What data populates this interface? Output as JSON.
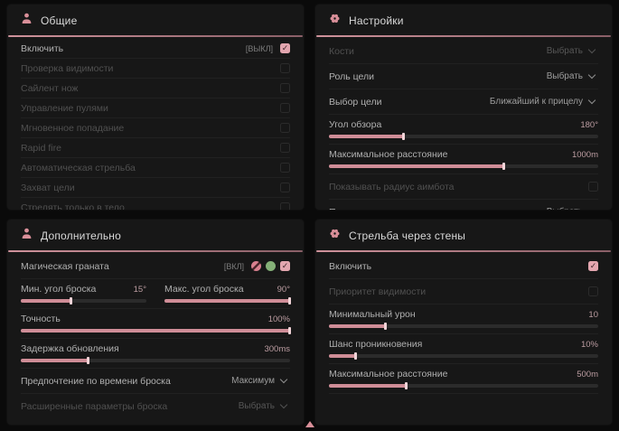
{
  "accent": "#d98f99",
  "footer_marker": "pointer-triangle",
  "panels": [
    {
      "id": "general",
      "title": "Общие",
      "icon": "person",
      "compact": true,
      "rows": [
        {
          "type": "toggle",
          "label": "Включить",
          "badge": "[ВЫКЛ]",
          "checked": true,
          "enabled": true
        },
        {
          "type": "toggle",
          "label": "Проверка видимости",
          "checked": false,
          "enabled": false
        },
        {
          "type": "toggle",
          "label": "Сайлент нож",
          "checked": false,
          "enabled": false
        },
        {
          "type": "toggle",
          "label": "Управление пулями",
          "checked": false,
          "enabled": false
        },
        {
          "type": "toggle",
          "label": "Мгновенное попадание",
          "checked": false,
          "enabled": false
        },
        {
          "type": "toggle",
          "label": "Rapid fire",
          "checked": false,
          "enabled": false
        },
        {
          "type": "toggle",
          "label": "Автоматическая стрельба",
          "checked": false,
          "enabled": false
        },
        {
          "type": "toggle",
          "label": "Захват цели",
          "checked": false,
          "enabled": false
        },
        {
          "type": "toggle",
          "label": "Стрелять только в тело",
          "checked": false,
          "enabled": false
        }
      ]
    },
    {
      "id": "settings",
      "title": "Настройки",
      "icon": "gear",
      "compact": false,
      "rows": [
        {
          "type": "select",
          "label": "Кости",
          "value": "Выбрать",
          "enabled": false
        },
        {
          "type": "select",
          "label": "Роль цели",
          "value": "Выбрать",
          "enabled": true
        },
        {
          "type": "select",
          "label": "Выбор цели",
          "value": "Ближайший к прицелу",
          "enabled": true
        },
        {
          "type": "slider",
          "label": "Угол обзора",
          "value": "180°",
          "fill": 28,
          "enabled": true
        },
        {
          "type": "slider",
          "label": "Максимальное расстояние",
          "value": "1000m",
          "fill": 65,
          "enabled": true
        },
        {
          "type": "toggle",
          "label": "Показывать радиус аимбота",
          "checked": false,
          "enabled": false
        },
        {
          "type": "select",
          "label": "Показывать цель",
          "value": "Выбрать",
          "enabled": true
        }
      ]
    },
    {
      "id": "additional",
      "title": "Дополнительно",
      "icon": "person",
      "compact": false,
      "rows": [
        {
          "type": "toggle",
          "label": "Магическая граната",
          "badge": "[ВКЛ]",
          "checked": true,
          "enabled": true,
          "extra_icons": [
            {
              "name": "pink-flower-icon",
              "color": "#d9808f",
              "slash": true
            },
            {
              "name": "green-flower-icon",
              "color": "#84b077",
              "slash": false
            }
          ]
        },
        {
          "type": "slider-pair",
          "left": {
            "label": "Мин. угол броска",
            "value": "15°",
            "fill": 40
          },
          "right": {
            "label": "Макс. угол броска",
            "value": "90°",
            "fill": 100
          }
        },
        {
          "type": "slider",
          "label": "Точность",
          "value": "100%",
          "fill": 100,
          "enabled": true
        },
        {
          "type": "slider",
          "label": "Задержка обновления",
          "value": "300ms",
          "fill": 25,
          "enabled": true
        },
        {
          "type": "select",
          "label": "Предпочтение по времени броска",
          "value": "Максимум",
          "enabled": true
        },
        {
          "type": "select",
          "label": "Расширенные параметры броска",
          "value": "Выбрать",
          "enabled": false
        }
      ]
    },
    {
      "id": "wallbang",
      "title": "Стрельба через стены",
      "icon": "gear",
      "compact": false,
      "rows": [
        {
          "type": "toggle",
          "label": "Включить",
          "checked": true,
          "enabled": true
        },
        {
          "type": "toggle",
          "label": "Приоритет видимости",
          "checked": false,
          "enabled": false
        },
        {
          "type": "slider",
          "label": "Минимальный урон",
          "value": "10",
          "fill": 21,
          "enabled": true
        },
        {
          "type": "slider",
          "label": "Шанс проникновения",
          "value": "10%",
          "fill": 10,
          "enabled": true
        },
        {
          "type": "slider",
          "label": "Максимальное расстояние",
          "value": "500m",
          "fill": 29,
          "enabled": true
        }
      ]
    }
  ]
}
